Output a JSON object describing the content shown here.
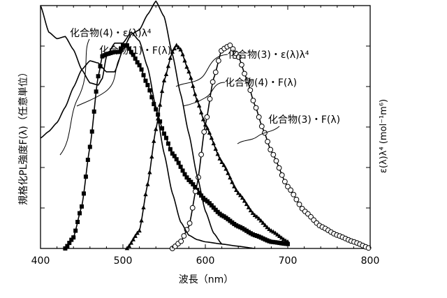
{
  "chart_data": {
    "type": "line",
    "xlabel": "波長（nm）",
    "ylabel_left": "規格化PL強度F(λ)（任意単位）",
    "ylabel_right": "ε(λ)λ⁴ (mol⁻¹m⁶)",
    "xlim": [
      400,
      800
    ],
    "ylim": [
      0,
      1.1
    ],
    "x_ticks": [
      400,
      500,
      600,
      700,
      800
    ],
    "x_tick_labels": [
      "400",
      "500",
      "600",
      "700",
      "800"
    ],
    "grid": false,
    "series": [
      {
        "name": "化合物(1)・F(λ)",
        "marker": "square",
        "x": [
          430,
          440,
          450,
          460,
          470,
          475,
          480,
          490,
          495,
          500,
          505,
          510,
          520,
          530,
          540,
          550,
          560,
          580,
          600,
          620,
          640,
          660,
          680,
          700
        ],
        "y": [
          0.0,
          0.05,
          0.19,
          0.46,
          0.78,
          0.87,
          0.88,
          0.89,
          0.89,
          0.92,
          0.92,
          0.89,
          0.83,
          0.74,
          0.63,
          0.52,
          0.43,
          0.31,
          0.22,
          0.15,
          0.1,
          0.06,
          0.03,
          0.02
        ]
      },
      {
        "name": "化合物(4)・F(λ)",
        "marker": "triangle",
        "x": [
          505,
          520,
          530,
          540,
          550,
          560,
          565,
          570,
          580,
          590,
          600,
          620,
          640,
          660,
          680,
          700
        ],
        "y": [
          0.0,
          0.08,
          0.29,
          0.54,
          0.76,
          0.89,
          0.92,
          0.9,
          0.8,
          0.67,
          0.56,
          0.39,
          0.25,
          0.15,
          0.08,
          0.03
        ]
      },
      {
        "name": "化合物(3)・F(λ)",
        "marker": "circle",
        "x": [
          560,
          570,
          580,
          590,
          600,
          610,
          620,
          630,
          640,
          650,
          660,
          670,
          680,
          700,
          720,
          740,
          760,
          780,
          800
        ],
        "y": [
          0.0,
          0.03,
          0.1,
          0.29,
          0.56,
          0.77,
          0.9,
          0.92,
          0.87,
          0.77,
          0.65,
          0.54,
          0.44,
          0.28,
          0.17,
          0.1,
          0.06,
          0.03,
          0.0
        ]
      },
      {
        "name": "化合物(4)・ε(λ)λ⁴",
        "marker": "none",
        "x": [
          400,
          410,
          420,
          430,
          440,
          450,
          460,
          470,
          480,
          490,
          500,
          510,
          520,
          530,
          540,
          550,
          560,
          570,
          580,
          590,
          600,
          610,
          620
        ],
        "y": [
          0.5,
          0.53,
          0.57,
          0.64,
          0.73,
          0.81,
          0.85,
          0.84,
          0.8,
          0.8,
          0.9,
          0.97,
          0.99,
          1.06,
          1.12,
          1.05,
          0.88,
          0.7,
          0.52,
          0.33,
          0.17,
          0.07,
          0.02
        ]
      },
      {
        "name": "化合物(3)・ε(λ)λ⁴",
        "marker": "none",
        "x": [
          400,
          410,
          420,
          430,
          440,
          450,
          460,
          470,
          475,
          480,
          490,
          500,
          510,
          520,
          530,
          540,
          550,
          560,
          570,
          580,
          590,
          600,
          620,
          640,
          660
        ],
        "y": [
          1.1,
          0.98,
          0.95,
          0.96,
          0.9,
          0.81,
          0.75,
          0.74,
          0.77,
          0.87,
          0.93,
          0.93,
          0.98,
          0.94,
          0.82,
          0.64,
          0.43,
          0.25,
          0.12,
          0.06,
          0.04,
          0.03,
          0.02,
          0.01,
          0.0
        ]
      }
    ],
    "annotations": [
      {
        "text": "化合物(4)・ε(λ)λ⁴",
        "series_index": 3
      },
      {
        "text": "化合物(1)・F(λ)",
        "series_index": 0
      },
      {
        "text": "化合物(3)・ε(λ)λ⁴",
        "series_index": 4
      },
      {
        "text": "化合物(4)・F(λ)",
        "series_index": 1
      },
      {
        "text": "化合物(3)・F(λ)",
        "series_index": 2
      }
    ]
  }
}
